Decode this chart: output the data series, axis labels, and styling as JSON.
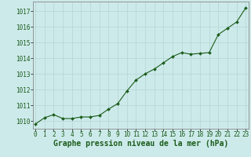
{
  "x": [
    0,
    1,
    2,
    3,
    4,
    5,
    6,
    7,
    8,
    9,
    10,
    11,
    12,
    13,
    14,
    15,
    16,
    17,
    18,
    19,
    20,
    21,
    22,
    23
  ],
  "y": [
    1009.8,
    1010.2,
    1010.4,
    1010.15,
    1010.15,
    1010.25,
    1010.25,
    1010.35,
    1010.75,
    1011.1,
    1011.9,
    1012.6,
    1013.0,
    1013.3,
    1013.7,
    1014.1,
    1014.35,
    1014.25,
    1014.3,
    1014.35,
    1015.5,
    1015.9,
    1016.3,
    1017.2
  ],
  "line_color": "#1a5c1a",
  "marker_color": "#1a5c1a",
  "bg_color": "#cdeaea",
  "grid_color": "#b8d8d8",
  "border_color": "#888888",
  "xlabel": "Graphe pression niveau de la mer (hPa)",
  "xlabel_color": "#1a5c1a",
  "ylabel_ticks": [
    1010,
    1011,
    1012,
    1013,
    1014,
    1015,
    1016,
    1017
  ],
  "xticks": [
    0,
    1,
    2,
    3,
    4,
    5,
    6,
    7,
    8,
    9,
    10,
    11,
    12,
    13,
    14,
    15,
    16,
    17,
    18,
    19,
    20,
    21,
    22,
    23
  ],
  "ylim": [
    1009.5,
    1017.6
  ],
  "xlim": [
    -0.3,
    23.3
  ],
  "tick_fontsize": 5.5,
  "xlabel_fontsize": 7.0
}
